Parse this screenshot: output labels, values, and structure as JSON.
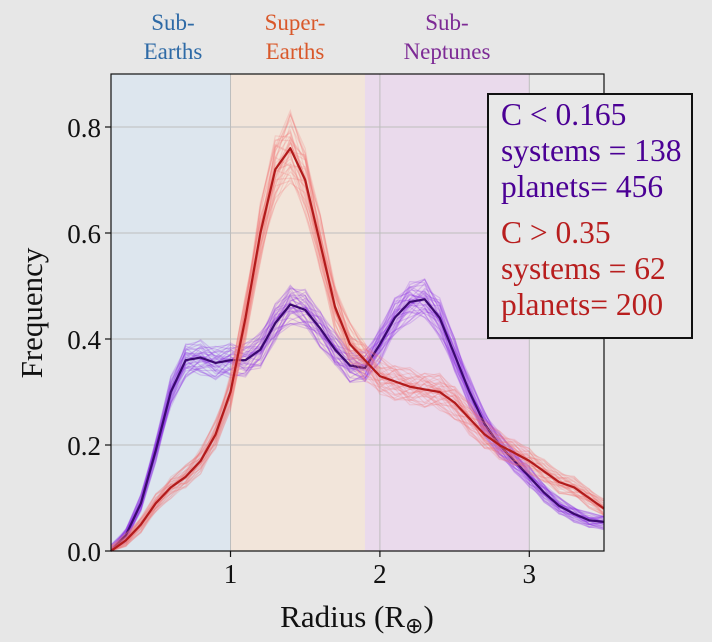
{
  "chart_data": {
    "type": "line",
    "xlabel": "Radius (R",
    "xlabel_symbol": "⊕",
    "xlabel_close": ")",
    "ylabel": "Frequency",
    "xlim": [
      0.2,
      3.5
    ],
    "ylim": [
      0,
      0.9
    ],
    "xticks": [
      "1",
      "2",
      "3"
    ],
    "yticks": [
      "0.0",
      "0.2",
      "0.4",
      "0.6",
      "0.8"
    ],
    "grid": true,
    "regions": [
      {
        "top": "Sub-",
        "bottom": "Earths",
        "x_range": [
          0.2,
          1.0
        ],
        "color": "#2e6aa6",
        "fill": "#dbe6ee"
      },
      {
        "top": "Super-",
        "bottom": "Earths",
        "x_range": [
          1.0,
          1.9
        ],
        "color": "#d9582a",
        "fill": "#f3e4d8"
      },
      {
        "top": "Sub-",
        "bottom": "Neptunes",
        "x_range": [
          1.9,
          3.0
        ],
        "color": "#7d2a95",
        "fill": "#ead8ec"
      }
    ],
    "series": [
      {
        "legend": {
          "criterion": "C < 0.165",
          "systems": "systems = 138",
          "planets": "planets= 456"
        },
        "color": "#8a2be2",
        "mean_color": "#3a0a6e",
        "x": [
          0.2,
          0.3,
          0.4,
          0.5,
          0.6,
          0.7,
          0.8,
          0.9,
          1.0,
          1.1,
          1.2,
          1.3,
          1.4,
          1.5,
          1.6,
          1.7,
          1.8,
          1.9,
          2.0,
          2.1,
          2.2,
          2.3,
          2.4,
          2.5,
          2.6,
          2.7,
          2.8,
          2.9,
          3.0,
          3.1,
          3.2,
          3.3,
          3.4,
          3.5
        ],
        "y": [
          0.0,
          0.03,
          0.09,
          0.19,
          0.3,
          0.36,
          0.365,
          0.355,
          0.36,
          0.36,
          0.38,
          0.43,
          0.465,
          0.455,
          0.42,
          0.38,
          0.35,
          0.345,
          0.39,
          0.44,
          0.47,
          0.475,
          0.44,
          0.37,
          0.3,
          0.24,
          0.2,
          0.17,
          0.14,
          0.11,
          0.085,
          0.07,
          0.058,
          0.055
        ]
      },
      {
        "legend": {
          "criterion": "C > 0.35",
          "systems": "systems = 62",
          "planets": "planets= 200"
        },
        "color": "#f07070",
        "mean_color": "#b21b1b",
        "x": [
          0.2,
          0.3,
          0.4,
          0.5,
          0.6,
          0.7,
          0.8,
          0.9,
          1.0,
          1.1,
          1.2,
          1.3,
          1.4,
          1.5,
          1.6,
          1.7,
          1.8,
          1.9,
          2.0,
          2.1,
          2.2,
          2.3,
          2.4,
          2.5,
          2.6,
          2.7,
          2.8,
          2.9,
          3.0,
          3.1,
          3.2,
          3.3,
          3.4,
          3.5
        ],
        "y": [
          0.0,
          0.02,
          0.05,
          0.09,
          0.12,
          0.14,
          0.17,
          0.22,
          0.3,
          0.44,
          0.6,
          0.72,
          0.76,
          0.7,
          0.58,
          0.46,
          0.39,
          0.36,
          0.33,
          0.32,
          0.31,
          0.305,
          0.3,
          0.28,
          0.25,
          0.22,
          0.2,
          0.185,
          0.17,
          0.15,
          0.13,
          0.12,
          0.1,
          0.08
        ]
      }
    ]
  }
}
